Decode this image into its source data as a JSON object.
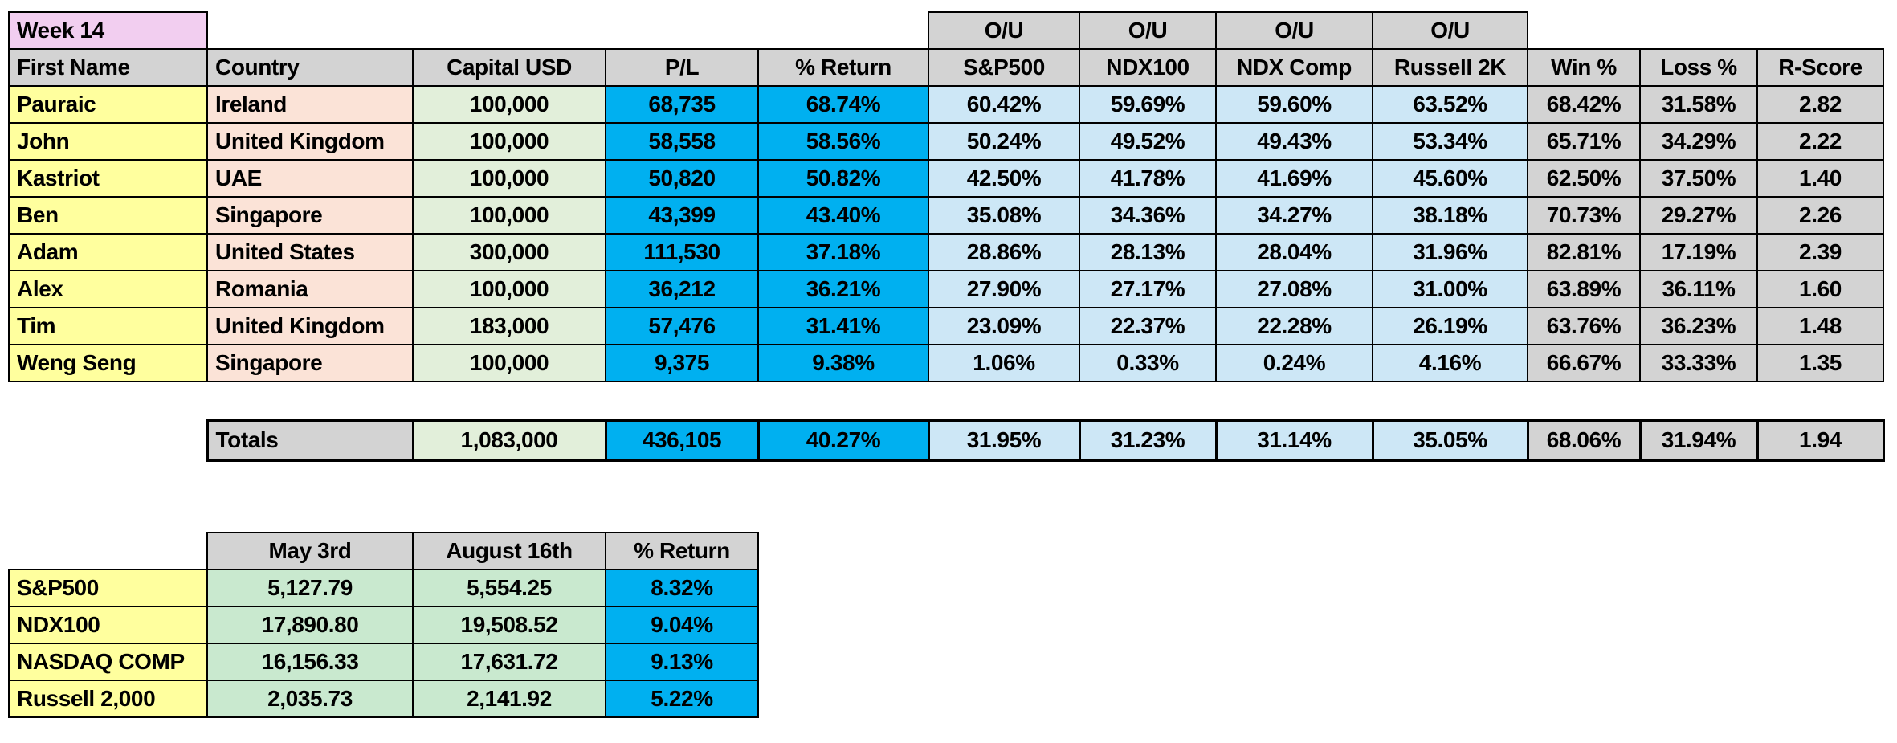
{
  "title": "Week 14",
  "colors": {
    "header_gray": "#D3D3D3",
    "week_pink": "#F2CEF0",
    "name_yellow": "#FFFF9E",
    "country_peach": "#FBE3D7",
    "capital_green": "#E2EFDA",
    "result_blue": "#00B0F0",
    "ou_light_blue": "#CDE7F6",
    "index_mint_green": "#C9E9CF",
    "border_black": "#000000"
  },
  "main_table": {
    "ou_header": "O/U",
    "columns": [
      "First Name",
      "Country",
      "Capital USD",
      "P/L",
      "% Return",
      "S&P500",
      "NDX100",
      "NDX Comp",
      "Russell 2K",
      "Win %",
      "Loss %",
      "R-Score"
    ],
    "rows": [
      [
        "Pauraic",
        "Ireland",
        "100,000",
        "68,735",
        "68.74%",
        "60.42%",
        "59.69%",
        "59.60%",
        "63.52%",
        "68.42%",
        "31.58%",
        "2.82"
      ],
      [
        "John",
        "United Kingdom",
        "100,000",
        "58,558",
        "58.56%",
        "50.24%",
        "49.52%",
        "49.43%",
        "53.34%",
        "65.71%",
        "34.29%",
        "2.22"
      ],
      [
        "Kastriot",
        "UAE",
        "100,000",
        "50,820",
        "50.82%",
        "42.50%",
        "41.78%",
        "41.69%",
        "45.60%",
        "62.50%",
        "37.50%",
        "1.40"
      ],
      [
        "Ben",
        "Singapore",
        "100,000",
        "43,399",
        "43.40%",
        "35.08%",
        "34.36%",
        "34.27%",
        "38.18%",
        "70.73%",
        "29.27%",
        "2.26"
      ],
      [
        "Adam",
        "United States",
        "300,000",
        "111,530",
        "37.18%",
        "28.86%",
        "28.13%",
        "28.04%",
        "31.96%",
        "82.81%",
        "17.19%",
        "2.39"
      ],
      [
        "Alex",
        "Romania",
        "100,000",
        "36,212",
        "36.21%",
        "27.90%",
        "27.17%",
        "27.08%",
        "31.00%",
        "63.89%",
        "36.11%",
        "1.60"
      ],
      [
        "Tim",
        "United Kingdom",
        "183,000",
        "57,476",
        "31.41%",
        "23.09%",
        "22.37%",
        "22.28%",
        "26.19%",
        "63.76%",
        "36.23%",
        "1.48"
      ],
      [
        "Weng Seng",
        "Singapore",
        "100,000",
        "9,375",
        "9.38%",
        "1.06%",
        "0.33%",
        "0.24%",
        "4.16%",
        "66.67%",
        "33.33%",
        "1.35"
      ]
    ],
    "totals": [
      "Totals",
      "1,083,000",
      "436,105",
      "40.27%",
      "31.95%",
      "31.23%",
      "31.14%",
      "35.05%",
      "68.06%",
      "31.94%",
      "1.94"
    ]
  },
  "index_table": {
    "columns": [
      "May 3rd",
      "August 16th",
      "% Return"
    ],
    "rows": [
      [
        "S&P500",
        "5,127.79",
        "5,554.25",
        "8.32%"
      ],
      [
        "NDX100",
        "17,890.80",
        "19,508.52",
        "9.04%"
      ],
      [
        "NASDAQ COMP",
        "16,156.33",
        "17,631.72",
        "9.13%"
      ],
      [
        "Russell 2,000",
        "2,035.73",
        "2,141.92",
        "5.22%"
      ]
    ]
  }
}
